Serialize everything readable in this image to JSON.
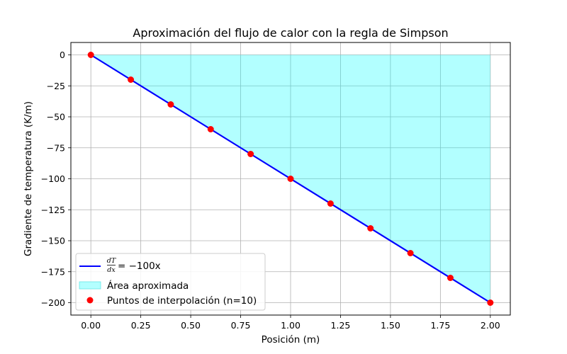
{
  "chart_data": {
    "type": "line",
    "title": "Aproximación del flujo de calor con la regla de Simpson",
    "xlabel": "Posición (m)",
    "ylabel": "Gradiente de temperatura (K/m)",
    "xlim": [
      -0.1,
      2.1
    ],
    "ylim": [
      -210,
      10
    ],
    "xticks": [
      0.0,
      0.25,
      0.5,
      0.75,
      1.0,
      1.25,
      1.5,
      1.75,
      2.0
    ],
    "xtick_labels": [
      "0.00",
      "0.25",
      "0.50",
      "0.75",
      "1.00",
      "1.25",
      "1.50",
      "1.75",
      "2.00"
    ],
    "yticks": [
      0,
      -25,
      -50,
      -75,
      -100,
      -125,
      -150,
      -175,
      -200
    ],
    "ytick_labels": [
      "0",
      "−25",
      "−50",
      "−75",
      "−100",
      "−125",
      "−150",
      "−175",
      "−200"
    ],
    "grid": true,
    "legend_position": "lower-left",
    "series": [
      {
        "name": "dT/dx = −100x",
        "kind": "line",
        "color": "#0000ff",
        "x": [
          0.0,
          2.0
        ],
        "y": [
          0,
          -200
        ]
      },
      {
        "name": "Área aproximada",
        "kind": "area",
        "color": "#00ffff",
        "x": [
          0.0,
          2.0
        ],
        "y": [
          0,
          -200
        ]
      },
      {
        "name": "Puntos de interpolación (n=10)",
        "kind": "scatter",
        "color": "#ff0000",
        "x": [
          0.0,
          0.2,
          0.4,
          0.6,
          0.8,
          1.0,
          1.2,
          1.4,
          1.6,
          1.8,
          2.0
        ],
        "y": [
          0,
          -20,
          -40,
          -60,
          -80,
          -100,
          -120,
          -140,
          -160,
          -180,
          -200
        ]
      }
    ],
    "legend": {
      "line_label": {
        "numerator": "dT",
        "denominator": "dx",
        "rhs": "= −100x"
      },
      "area_label": "Área aproximada",
      "points_label": "Puntos de interpolación (n=10)"
    }
  }
}
